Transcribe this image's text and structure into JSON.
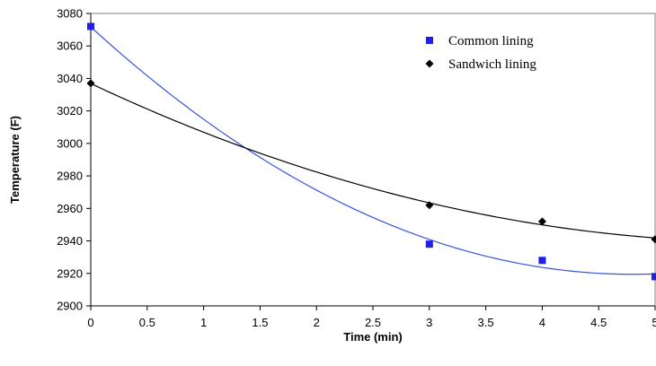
{
  "chart_data": {
    "type": "scatter",
    "title": "",
    "xlabel": "Time (min)",
    "ylabel": "Temperature (F)",
    "xlim": [
      0,
      5
    ],
    "ylim": [
      2900,
      3080
    ],
    "x_ticks": [
      "0",
      "0.5",
      "1",
      "1.5",
      "2",
      "2.5",
      "3",
      "3.5",
      "4",
      "4.5",
      "5"
    ],
    "y_ticks": [
      "2900",
      "2920",
      "2940",
      "2960",
      "2980",
      "3000",
      "3020",
      "3040",
      "3060",
      "3080"
    ],
    "grid": false,
    "legend_position": "top-right",
    "series": [
      {
        "name": "Common lining",
        "marker": "square",
        "color": "#1f1fe6",
        "line_color": "#3355dd",
        "points": [
          {
            "x": 0,
            "y": 3072
          },
          {
            "x": 3,
            "y": 2938
          },
          {
            "x": 4,
            "y": 2928
          },
          {
            "x": 5,
            "y": 2918
          }
        ],
        "trendline": "polynomial"
      },
      {
        "name": "Sandwich lining",
        "marker": "diamond",
        "color": "#000000",
        "line_color": "#000000",
        "points": [
          {
            "x": 0,
            "y": 3037
          },
          {
            "x": 3,
            "y": 2962
          },
          {
            "x": 4,
            "y": 2952
          },
          {
            "x": 5,
            "y": 2941
          }
        ],
        "trendline": "polynomial"
      }
    ]
  }
}
